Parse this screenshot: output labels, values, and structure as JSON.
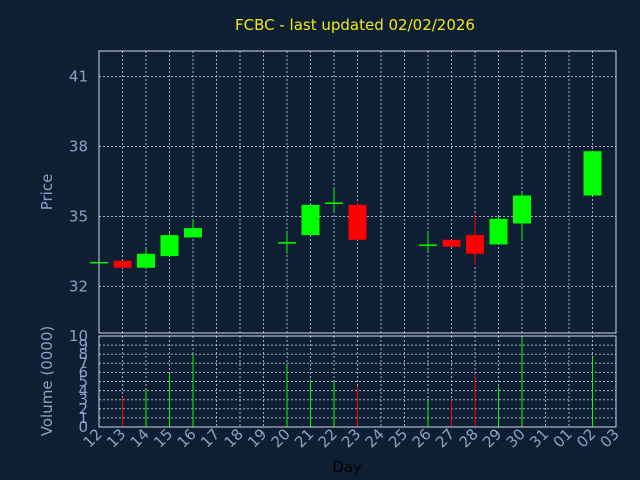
{
  "chart_data": {
    "type": "candlestick",
    "title": "FCBC - last updated 02/02/2026",
    "xlabel": "Day",
    "price_panel": {
      "ylabel": "Price",
      "ylim": [
        30,
        42.1
      ],
      "yticks": [
        32,
        35,
        38,
        41
      ]
    },
    "volume_panel": {
      "ylabel": "Volume (0000)",
      "ylim": [
        0,
        10
      ],
      "yticks": [
        0,
        1,
        2,
        3,
        4,
        5,
        6,
        7,
        8,
        9,
        10
      ]
    },
    "x_tick_labels": [
      "12",
      "13",
      "14",
      "15",
      "16",
      "17",
      "18",
      "19",
      "20",
      "21",
      "22",
      "23",
      "24",
      "25",
      "26",
      "27",
      "28",
      "29",
      "30",
      "31",
      "01",
      "02",
      "03"
    ],
    "candles": [
      {
        "day": "12",
        "open": 33.0,
        "close": 33.05,
        "high": 33.1,
        "low": 33.0,
        "volume": 0
      },
      {
        "day": "13",
        "open": 33.1,
        "close": 32.8,
        "high": 33.1,
        "low": 32.8,
        "volume": 3.3
      },
      {
        "day": "14",
        "open": 32.8,
        "close": 33.4,
        "high": 33.6,
        "low": 32.8,
        "volume": 4.0
      },
      {
        "day": "15",
        "open": 33.3,
        "close": 34.2,
        "high": 34.3,
        "low": 33.3,
        "volume": 5.8
      },
      {
        "day": "16",
        "open": 34.1,
        "close": 34.5,
        "high": 34.9,
        "low": 34.1,
        "volume": 8.0
      },
      {
        "day": "20",
        "open": 33.9,
        "close": 33.9,
        "high": 34.3,
        "low": 33.4,
        "volume": 6.9
      },
      {
        "day": "21",
        "open": 34.2,
        "close": 35.5,
        "high": 35.5,
        "low": 34.2,
        "volume": 5.2
      },
      {
        "day": "22",
        "open": 35.6,
        "close": 35.6,
        "high": 36.2,
        "low": 35.2,
        "volume": 5.0
      },
      {
        "day": "23",
        "open": 35.5,
        "close": 34.0,
        "high": 35.6,
        "low": 34.0,
        "volume": 4.5
      },
      {
        "day": "26",
        "open": 33.8,
        "close": 33.8,
        "high": 34.3,
        "low": 33.5,
        "volume": 3.1
      },
      {
        "day": "27",
        "open": 34.0,
        "close": 33.7,
        "high": 34.0,
        "low": 33.7,
        "volume": 2.9
      },
      {
        "day": "28",
        "open": 34.2,
        "close": 33.4,
        "high": 35.1,
        "low": 32.9,
        "volume": 5.7
      },
      {
        "day": "29",
        "open": 33.8,
        "close": 34.9,
        "high": 35.0,
        "low": 33.8,
        "volume": 4.4
      },
      {
        "day": "30",
        "open": 34.7,
        "close": 35.9,
        "high": 36.0,
        "low": 34.0,
        "volume": 9.8
      },
      {
        "day": "02",
        "open": 35.9,
        "close": 37.8,
        "high": 37.8,
        "low": 35.9,
        "volume": 7.7
      }
    ],
    "up_color": "#00ff00",
    "down_color": "#ff0000",
    "grid": true,
    "background": "#0f1f33",
    "plot_background": "#0f1f33",
    "grid_color": "#c0c8d8",
    "frame_color": "#d0d8e8"
  }
}
